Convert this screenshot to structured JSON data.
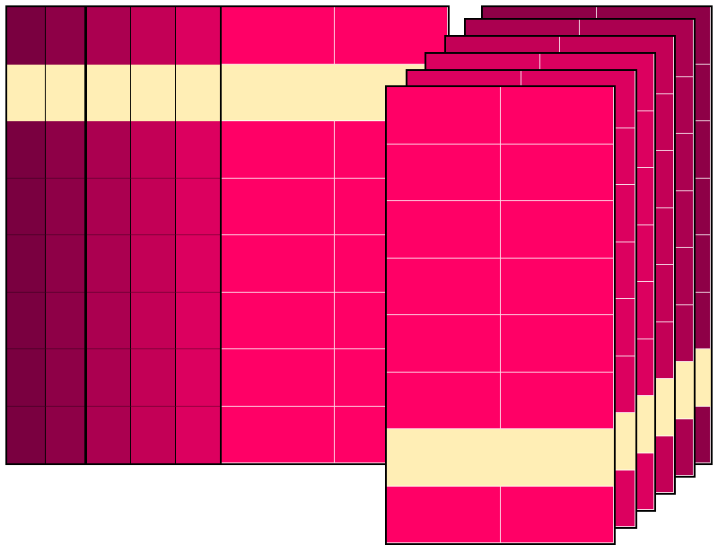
{
  "colors": {
    "highlight": "#ffeeb5",
    "shade_1": "#7a0040",
    "shade_2": "#8e0047",
    "shade_3": "#ab0050",
    "shade_4": "#c30056",
    "shade_5": "#dc005f",
    "shade_6": "#ff0066",
    "border": "#000000",
    "gridline": "#ffffff"
  },
  "diagram": {
    "rows": 8,
    "left_grid": {
      "columns": [
        "shade_1",
        "shade_2"
      ],
      "highlight_row": 1
    },
    "middle_grid": {
      "columns": [
        "shade_3",
        "shade_4",
        "shade_5"
      ],
      "highlight_row": 1
    },
    "big_panel": {
      "color": "shade_6",
      "columns": 2,
      "highlight_row": 1
    },
    "stacked_panels": [
      {
        "name": "stack-5",
        "color": "shade_2",
        "columns": 2,
        "highlight_row": 6
      },
      {
        "name": "stack-4",
        "color": "shade_3",
        "columns": 2,
        "highlight_row": 6
      },
      {
        "name": "stack-3",
        "color": "shade_4",
        "columns": 2,
        "highlight_row": 6
      },
      {
        "name": "stack-2",
        "color": "shade_5",
        "columns": 2,
        "highlight_row": 6
      },
      {
        "name": "stack-1",
        "color": "shade_5",
        "columns": 2,
        "highlight_row": 6
      }
    ],
    "front_panel": {
      "color": "shade_6",
      "columns": 2,
      "highlight_row": 6
    }
  }
}
